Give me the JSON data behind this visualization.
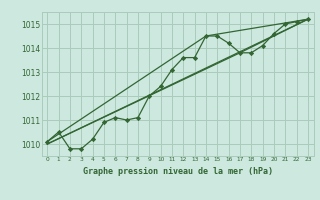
{
  "title": "Graphe pression niveau de la mer (hPa)",
  "x_ticks": [
    0,
    1,
    2,
    3,
    4,
    5,
    6,
    7,
    8,
    9,
    10,
    11,
    12,
    13,
    14,
    15,
    16,
    17,
    18,
    19,
    20,
    21,
    22,
    23
  ],
  "xlim": [
    -0.5,
    23.5
  ],
  "ylim": [
    1009.5,
    1015.5
  ],
  "yticks": [
    1010,
    1011,
    1012,
    1013,
    1014,
    1015
  ],
  "bg_color": "#cce8df",
  "grid_color": "#aaccbb",
  "line_color": "#336633",
  "main_series_x": [
    0,
    1,
    2,
    3,
    4,
    5,
    6,
    7,
    8,
    9,
    10,
    11,
    12,
    13,
    14,
    15,
    16,
    17,
    18,
    19,
    20,
    21,
    22,
    23
  ],
  "main_series_y": [
    1010.1,
    1010.5,
    1009.8,
    1009.8,
    1010.2,
    1010.9,
    1011.1,
    1011.0,
    1011.1,
    1012.0,
    1012.4,
    1013.1,
    1013.6,
    1013.6,
    1014.5,
    1014.5,
    1014.2,
    1013.8,
    1013.8,
    1014.1,
    1014.6,
    1015.0,
    1015.1,
    1015.2
  ],
  "trend1_x": [
    0,
    23
  ],
  "trend1_y": [
    1010.0,
    1015.2
  ],
  "trend2_x": [
    0,
    14,
    23
  ],
  "trend2_y": [
    1010.1,
    1014.5,
    1015.2
  ],
  "trend3_x": [
    0,
    17,
    23
  ],
  "trend3_y": [
    1010.0,
    1013.8,
    1015.2
  ]
}
